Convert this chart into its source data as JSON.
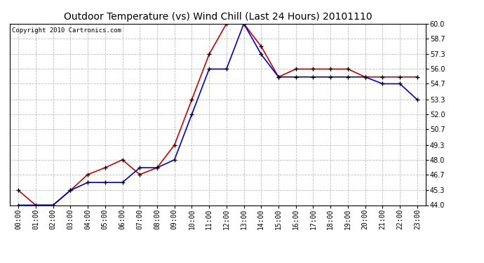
{
  "title": "Outdoor Temperature (vs) Wind Chill (Last 24 Hours) 20101110",
  "copyright": "Copyright 2010 Cartronics.com",
  "hours": [
    "00:00",
    "01:00",
    "02:00",
    "03:00",
    "04:00",
    "05:00",
    "06:00",
    "07:00",
    "08:00",
    "09:00",
    "10:00",
    "11:00",
    "12:00",
    "13:00",
    "14:00",
    "15:00",
    "16:00",
    "17:00",
    "18:00",
    "19:00",
    "20:00",
    "21:00",
    "22:00",
    "23:00"
  ],
  "outdoor_temp": [
    45.3,
    44.0,
    44.0,
    45.3,
    46.7,
    47.3,
    48.0,
    46.7,
    47.3,
    49.3,
    53.3,
    57.3,
    60.0,
    60.0,
    58.0,
    55.3,
    56.0,
    56.0,
    56.0,
    56.0,
    55.3,
    55.3,
    55.3,
    55.3
  ],
  "wind_chill": [
    44.0,
    44.0,
    44.0,
    45.3,
    46.0,
    46.0,
    46.0,
    47.3,
    47.3,
    48.0,
    52.0,
    56.0,
    56.0,
    60.0,
    57.3,
    55.3,
    55.3,
    55.3,
    55.3,
    55.3,
    55.3,
    54.7,
    54.7,
    53.3
  ],
  "temp_color": "#cc0000",
  "chill_color": "#0000cc",
  "ylim": [
    44.0,
    60.0
  ],
  "yticks": [
    44.0,
    45.3,
    46.7,
    48.0,
    49.3,
    50.7,
    52.0,
    53.3,
    54.7,
    56.0,
    57.3,
    58.7,
    60.0
  ],
  "bg_color": "#ffffff",
  "plot_bg": "#ffffff",
  "grid_color": "#bbbbbb",
  "marker": "+",
  "title_fontsize": 10,
  "copyright_fontsize": 6.5,
  "tick_fontsize": 7,
  "fig_width": 6.9,
  "fig_height": 3.75,
  "dpi": 100
}
